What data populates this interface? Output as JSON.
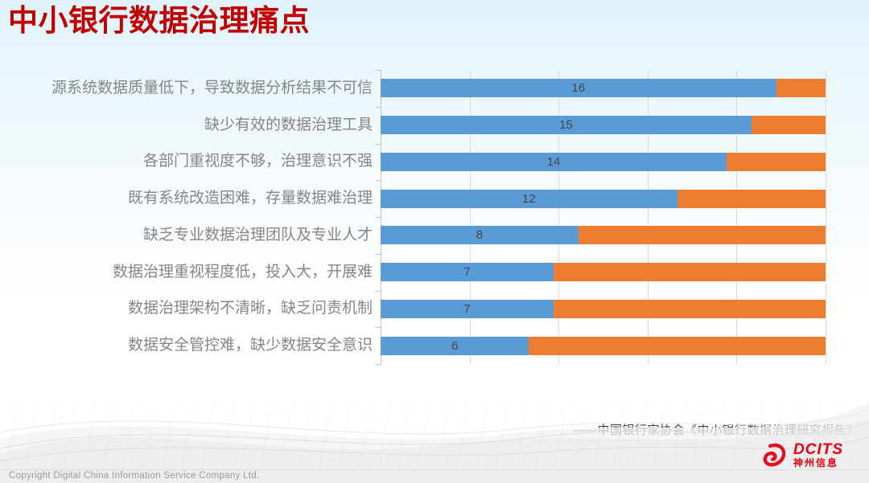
{
  "title": "中小银行数据治理痛点",
  "chart_data": {
    "type": "bar",
    "orientation": "horizontal-stacked",
    "title": "中小银行数据治理痛点",
    "categories": [
      "源系统数据质量低下，导致数据分析结果不可信",
      "缺少有效的数据治理工具",
      "各部门重视度不够，治理意识不强",
      "既有系统改造困难，存量数据难治理",
      "缺乏专业数据治理团队及专业人才",
      "数据治理重视程度低，投入大，开展难",
      "数据治理架构不清晰，缺乏问责机制",
      "数据安全管控难，缺少数据安全意识"
    ],
    "series": [
      {
        "name": "series-blue",
        "color": "#5B9BD5",
        "values": [
          16,
          15,
          14,
          12,
          8,
          7,
          7,
          6
        ],
        "labeled": true
      },
      {
        "name": "series-orange",
        "color": "#ED7D31",
        "values": [
          2,
          3,
          4,
          6,
          10,
          11,
          11,
          12
        ],
        "labeled": false
      }
    ],
    "xlim": [
      0,
      18
    ],
    "gridline_count": 6,
    "grid": "vertical-lines-on",
    "legend_position": "none",
    "value_labels": "centered-in-blue-segment"
  },
  "source": "——中国银行家协会《中小银行数据治理研究报告》",
  "footer": {
    "copyright": "Copyright  Digital China Information Service Company Ltd."
  },
  "logo": {
    "brand": "DCITS",
    "brand_cn": "神州信息",
    "color": "#E60012"
  },
  "colors": {
    "title": "#C00000",
    "bar_blue": "#5B9BD5",
    "bar_orange": "#ED7D31",
    "gridline": "#D9D9D9",
    "category_label": "#858585",
    "value_label": "#454545",
    "background_top": "#E3F3FA"
  }
}
